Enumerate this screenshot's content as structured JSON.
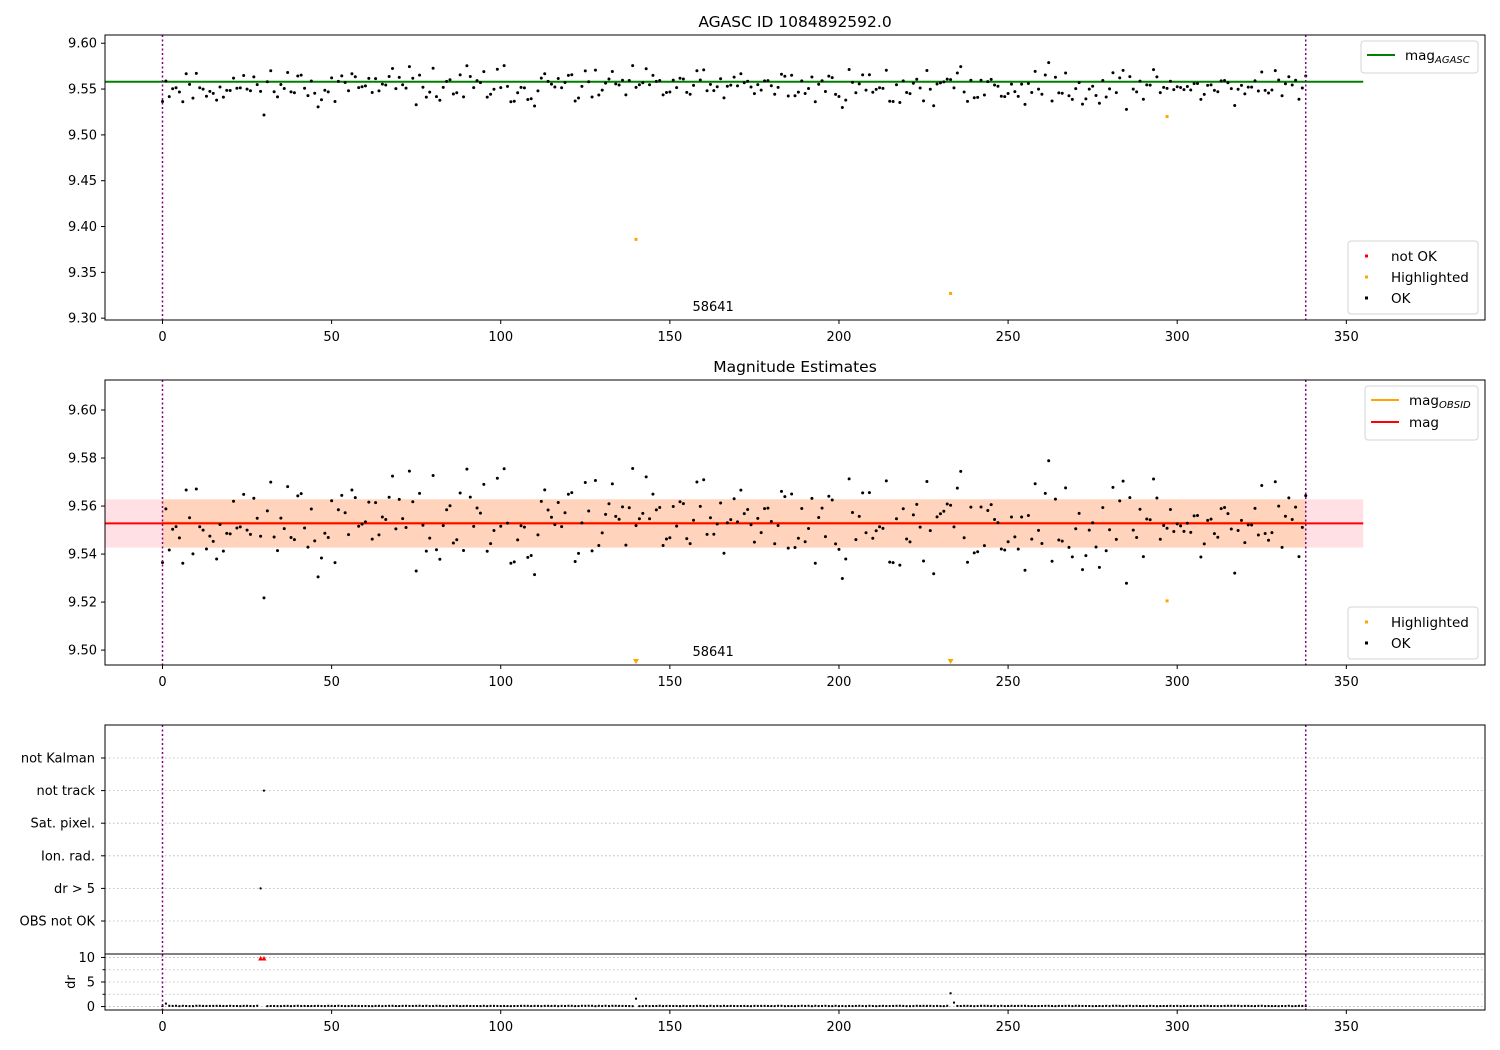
{
  "chart_data": [
    {
      "type": "scatter",
      "title": "AGASC ID 1084892592.0",
      "xlim": [
        -17,
        391
      ],
      "ylim": [
        9.298,
        9.609
      ],
      "xticks": [
        0,
        50,
        100,
        150,
        200,
        250,
        300,
        350
      ],
      "xtick_labels": [
        "0",
        "50",
        "100",
        "150",
        "200",
        "250",
        "300",
        "350"
      ],
      "yticks": [
        9.3,
        9.35,
        9.4,
        9.45,
        9.5,
        9.55,
        9.6
      ],
      "ytick_labels": [
        "9.30",
        "9.35",
        "9.40",
        "9.45",
        "9.50",
        "9.55",
        "9.60"
      ],
      "obsid_boundaries": [
        0,
        338
      ],
      "obsid_labels": [
        {
          "x": 169,
          "text": "58641"
        }
      ],
      "hlines": [
        {
          "name": "mag_AGASC",
          "y": 9.558,
          "x": [
            -17,
            355
          ],
          "color": "#008000"
        }
      ],
      "highlighted": [
        {
          "x": 140,
          "y": 9.386
        },
        {
          "x": 233,
          "y": 9.327
        },
        {
          "x": 297,
          "y": 9.52
        }
      ],
      "ok_series_seed": 11,
      "ok_n": 339,
      "ok_mean": 9.5525,
      "ok_spread": 0.01,
      "legend_lines": [
        {
          "label": "mag",
          "sub": "AGASC",
          "color": "#008000"
        }
      ],
      "legend_points": [
        {
          "label": "not OK",
          "color": "#ff0000"
        },
        {
          "label": "Highlighted",
          "color": "#ffa500"
        },
        {
          "label": "OK",
          "color": "#000000"
        }
      ]
    },
    {
      "type": "scatter",
      "title": "Magnitude Estimates",
      "xlim": [
        -17,
        391
      ],
      "ylim": [
        9.4938,
        9.6125
      ],
      "xticks": [
        0,
        50,
        100,
        150,
        200,
        250,
        300,
        350
      ],
      "xtick_labels": [
        "0",
        "50",
        "100",
        "150",
        "200",
        "250",
        "300",
        "350"
      ],
      "yticks": [
        9.5,
        9.52,
        9.54,
        9.56,
        9.58,
        9.6
      ],
      "ytick_labels": [
        "9.50",
        "9.52",
        "9.54",
        "9.56",
        "9.58",
        "9.60"
      ],
      "obsid_boundaries": [
        0,
        338
      ],
      "obsid_labels": [
        {
          "x": 169,
          "text": "58641"
        }
      ],
      "bands": [
        {
          "name": "mag band",
          "y0": 9.5427,
          "y1": 9.5628,
          "x": [
            -17,
            355
          ],
          "color": "#ffb3bf"
        },
        {
          "name": "mag_OBSID band",
          "y0": 9.5427,
          "y1": 9.5628,
          "x": [
            0,
            338
          ],
          "color": "#ffc89a"
        }
      ],
      "hlines": [
        {
          "name": "mag_OBSID",
          "y": 9.553,
          "x": [
            0,
            338
          ],
          "color": "#ffa500"
        },
        {
          "name": "mag",
          "y": 9.5528,
          "x": [
            -17,
            355
          ],
          "color": "#ff0000"
        }
      ],
      "highlighted": [
        {
          "x": 297,
          "y": 9.5205
        }
      ],
      "highlighted_below": [
        {
          "x": 140
        },
        {
          "x": 233
        }
      ],
      "legend_lines": [
        {
          "label": "mag",
          "sub": "OBSID",
          "color": "#ffa500"
        },
        {
          "label": "mag",
          "sub": "",
          "color": "#ff0000"
        }
      ],
      "legend_points": [
        {
          "label": "Highlighted",
          "color": "#ffa500"
        },
        {
          "label": "OK",
          "color": "#000000"
        }
      ]
    },
    {
      "type": "scatter",
      "title": "",
      "xlim": [
        -17,
        391
      ],
      "xticks": [
        0,
        50,
        100,
        150,
        200,
        250,
        300,
        350
      ],
      "xtick_labels": [
        "0",
        "50",
        "100",
        "150",
        "200",
        "250",
        "300",
        "350"
      ],
      "flag_rows": [
        "not Kalman",
        "not track",
        "Sat. pixel.",
        "Ion. rad.",
        "dr > 5",
        "OBS not OK"
      ],
      "flag_points": [
        {
          "row": "not track",
          "x": [
            30
          ]
        },
        {
          "row": "dr > 5",
          "x": [
            29
          ]
        }
      ],
      "obsid_boundaries": [
        0,
        338
      ],
      "dr_ylabel": "dr",
      "dr_ylim": [
        -0.5,
        10.5
      ],
      "dr_yticks": [
        0,
        5,
        10
      ],
      "dr_ytick_labels": [
        "0",
        "5",
        "10"
      ],
      "dr_clipped": [
        {
          "x": 29
        },
        {
          "x": 30
        }
      ],
      "dr_spikes": [
        {
          "x": 140,
          "y": 1.6
        },
        {
          "x": 233,
          "y": 2.7
        },
        {
          "x": 234,
          "y": 0.8
        },
        {
          "x": 1,
          "y": 0.6
        }
      ],
      "dr_baseline": 0.12
    }
  ]
}
